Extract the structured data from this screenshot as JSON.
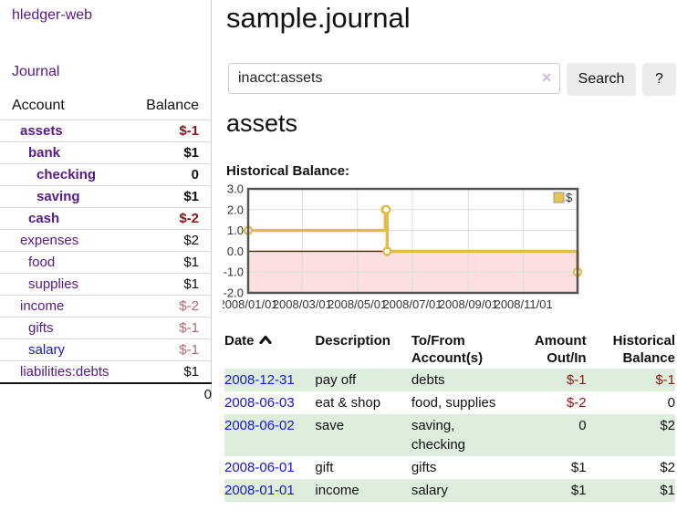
{
  "brand": "hledger-web",
  "nav": {
    "journal": "Journal"
  },
  "sidebar": {
    "col_account": "Account",
    "col_balance": "Balance",
    "accounts": [
      {
        "name": "assets",
        "depth": 0,
        "bold": true,
        "name_tone": "purple",
        "balance": "$-1",
        "balance_tone": "maroon"
      },
      {
        "name": "bank",
        "depth": 1,
        "bold": true,
        "name_tone": "purple",
        "balance": "$1",
        "balance_tone": "black"
      },
      {
        "name": "checking",
        "depth": 2,
        "bold": true,
        "name_tone": "purple",
        "balance": "0",
        "balance_tone": "black"
      },
      {
        "name": "saving",
        "depth": 2,
        "bold": true,
        "name_tone": "purple",
        "balance": "$1",
        "balance_tone": "black"
      },
      {
        "name": "cash",
        "depth": 1,
        "bold": true,
        "name_tone": "purple",
        "balance": "$-2",
        "balance_tone": "maroon"
      },
      {
        "name": "expenses",
        "depth": 0,
        "bold": false,
        "name_tone": "purple",
        "balance": "$2",
        "balance_tone": "black"
      },
      {
        "name": "food",
        "depth": 1,
        "bold": false,
        "name_tone": "purple",
        "balance": "$1",
        "balance_tone": "black"
      },
      {
        "name": "supplies",
        "depth": 1,
        "bold": false,
        "name_tone": "purple",
        "balance": "$1",
        "balance_tone": "black"
      },
      {
        "name": "income",
        "depth": 0,
        "bold": false,
        "name_tone": "purple",
        "balance": "$-2",
        "balance_tone": "rose"
      },
      {
        "name": "gifts",
        "depth": 1,
        "bold": false,
        "name_tone": "purple",
        "balance": "$-1",
        "balance_tone": "rose"
      },
      {
        "name": "salary",
        "depth": 1,
        "bold": false,
        "name_tone": "blue",
        "balance": "$-1",
        "balance_tone": "rose"
      },
      {
        "name": "liabilities:debts",
        "depth": 0,
        "bold": false,
        "name_tone": "purple",
        "balance": "$1",
        "balance_tone": "black"
      }
    ],
    "total": "0"
  },
  "page": {
    "title": "sample.journal",
    "account_heading": "assets",
    "chart_label": "Historical Balance:"
  },
  "search": {
    "value": "inacct:assets",
    "clear_icon": "✕",
    "button": "Search",
    "help": "?"
  },
  "chart_data": {
    "type": "line",
    "step": true,
    "title": "Historical Balance",
    "x_min": "2008-01-01",
    "x_max": "2008-12-31",
    "ylim": [
      -2,
      3
    ],
    "yticks": [
      "3.0",
      "2.0",
      "1.0",
      "0.0",
      "-1.0",
      "-2.0"
    ],
    "xticks": [
      "2008/01/01",
      "2008/03/01",
      "2008/05/01",
      "2008/07/01",
      "2008/09/01",
      "2008/11/01"
    ],
    "series": [
      {
        "name": "$",
        "color": "#e2bc49",
        "points": [
          [
            "2008-01-01",
            1
          ],
          [
            "2008-06-01",
            2
          ],
          [
            "2008-06-02",
            2
          ],
          [
            "2008-06-03",
            0
          ],
          [
            "2008-12-31",
            -1
          ]
        ]
      }
    ],
    "negative_region_color": "#fcdfe1",
    "zero_line_color": "#8b0000",
    "grid_color": "#dddddd",
    "plot_border_color": "#555555",
    "legend": {
      "label": "$",
      "position": "top-right",
      "swatch_color": "#e8c44f"
    }
  },
  "register": {
    "headers": [
      {
        "l1": "Date",
        "l2": ""
      },
      {
        "l1": "Description",
        "l2": ""
      },
      {
        "l1": "To/From",
        "l2": "Account(s)"
      },
      {
        "l1": "Amount",
        "l2": "Out/In"
      },
      {
        "l1": "Historical",
        "l2": "Balance"
      }
    ],
    "rows": [
      {
        "date": "2008-12-31",
        "description": "pay off",
        "accounts": "debts",
        "amount": "$-1",
        "amount_tone": "maroon",
        "balance": "$-1",
        "balance_tone": "maroon",
        "shaded": true
      },
      {
        "date": "2008-06-03",
        "description": "eat & shop",
        "accounts": "food, supplies",
        "amount": "$-2",
        "amount_tone": "maroon",
        "balance": "0",
        "balance_tone": "black",
        "shaded": false
      },
      {
        "date": "2008-06-02",
        "description": "save",
        "accounts": "saving, checking",
        "amount": "0",
        "amount_tone": "black",
        "balance": "$2",
        "balance_tone": "black",
        "shaded": true
      },
      {
        "date": "2008-06-01",
        "description": "gift",
        "accounts": "gifts",
        "amount": "$1",
        "amount_tone": "black",
        "balance": "$2",
        "balance_tone": "black",
        "shaded": false
      },
      {
        "date": "2008-01-01",
        "description": "income",
        "accounts": "salary",
        "amount": "$1",
        "amount_tone": "black",
        "balance": "$1",
        "balance_tone": "black",
        "shaded": true
      }
    ]
  }
}
